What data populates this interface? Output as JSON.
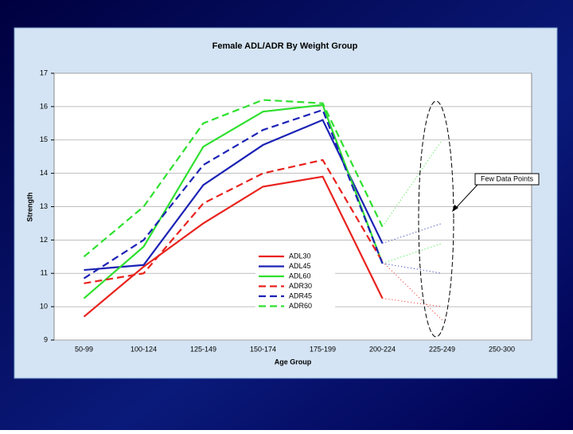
{
  "chart_data": {
    "type": "line",
    "title": "Female ADL/ADR  By Weight Group",
    "x_label": "Age Group",
    "y_label": "Strength",
    "categories": [
      "50-99",
      "100-124",
      "125-149",
      "150-174",
      "175-199",
      "200-224",
      "225-249",
      "250-300"
    ],
    "ylim": [
      9,
      17
    ],
    "yticks": [
      9,
      10,
      11,
      12,
      13,
      14,
      15,
      16,
      17
    ],
    "grid": true,
    "annotation": "Few Data Points",
    "series": [
      {
        "name": "ADL30",
        "color": "#e8231e",
        "dashed": false,
        "values": [
          9.7,
          11.2,
          12.5,
          13.6,
          13.9,
          10.25,
          10.0,
          null
        ]
      },
      {
        "name": "ADL45",
        "color": "#1c23b4",
        "dashed": false,
        "values": [
          11.1,
          11.25,
          13.65,
          14.85,
          15.6,
          11.9,
          12.5,
          null
        ]
      },
      {
        "name": "ADL60",
        "color": "#2ee02e",
        "dashed": false,
        "values": [
          10.25,
          11.8,
          14.8,
          15.85,
          16.05,
          11.3,
          11.9,
          null
        ]
      },
      {
        "name": "ADR30",
        "color": "#e8231e",
        "dashed": true,
        "values": [
          10.7,
          11.0,
          13.1,
          14.0,
          14.4,
          11.35,
          9.6,
          null
        ]
      },
      {
        "name": "ADR45",
        "color": "#1c23b4",
        "dashed": true,
        "values": [
          10.85,
          12.0,
          14.25,
          15.3,
          15.9,
          11.3,
          11.0,
          null
        ]
      },
      {
        "name": "ADR60",
        "color": "#2ee02e",
        "dashed": true,
        "values": [
          11.5,
          13.0,
          15.5,
          16.2,
          16.1,
          12.4,
          15.0,
          null
        ]
      }
    ]
  }
}
